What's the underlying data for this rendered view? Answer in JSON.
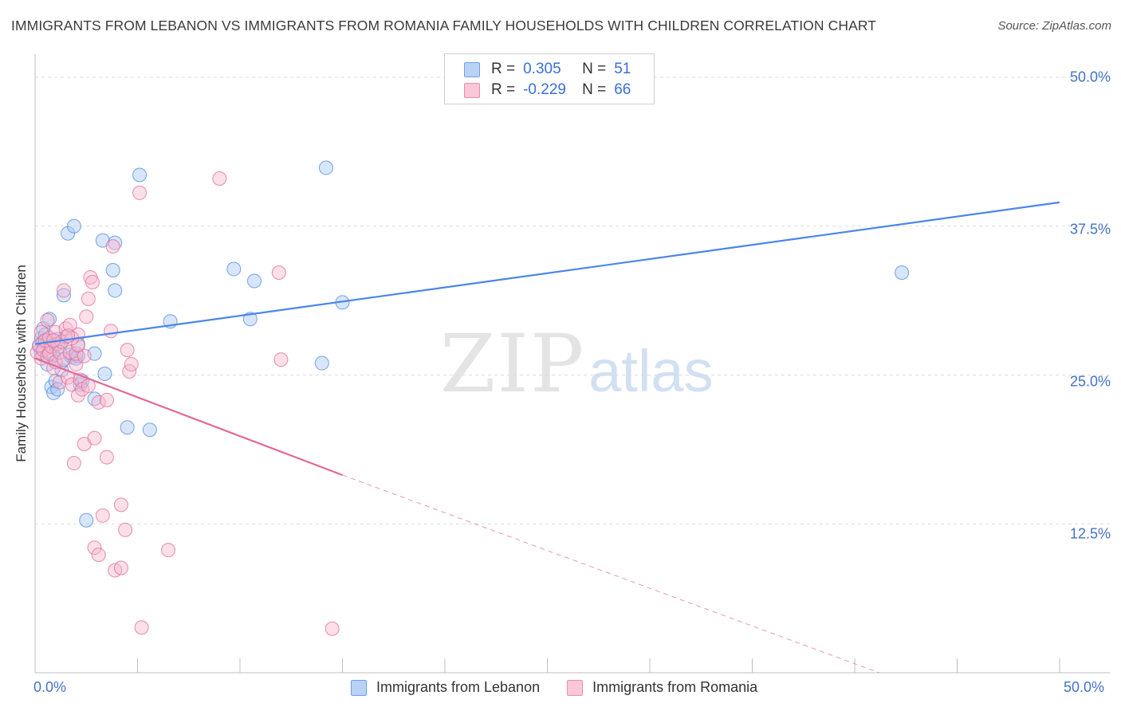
{
  "header": {
    "title": "IMMIGRANTS FROM LEBANON VS IMMIGRANTS FROM ROMANIA FAMILY HOUSEHOLDS WITH CHILDREN CORRELATION CHART",
    "source": "Source: ZipAtlas.com"
  },
  "watermark": {
    "zip": "ZIP",
    "atlas": "atlas"
  },
  "legend": {
    "lebanon": {
      "r_label": "R =",
      "r_value": "0.305",
      "n_label": "N =",
      "n_value": "51"
    },
    "romania": {
      "r_label": "R =",
      "r_value": "-0.229",
      "n_label": "N =",
      "n_value": "66"
    }
  },
  "chart_data": {
    "type": "scatter",
    "title": "IMMIGRANTS FROM LEBANON VS IMMIGRANTS FROM ROMANIA FAMILY HOUSEHOLDS WITH CHILDREN CORRELATION CHART",
    "xlabel": "",
    "ylabel": "Family Households with Children",
    "xlim": [
      0,
      50
    ],
    "ylim": [
      0,
      50
    ],
    "x_tick_labels": [
      "0.0%",
      "50.0%"
    ],
    "y_tick_labels": [
      {
        "value": 50,
        "label": "50.0%"
      },
      {
        "value": 37.5,
        "label": "37.5%"
      },
      {
        "value": 25,
        "label": "25.0%"
      },
      {
        "value": 12.5,
        "label": "12.5%"
      }
    ],
    "legend_position": "top-center",
    "colors": {
      "lebanon": "#4a86e8",
      "lebanon_fill": "#a9c8f2",
      "romania": "#e26a96",
      "romania_fill": "#f7b8cf"
    },
    "series": [
      {
        "name": "Immigrants from Lebanon",
        "r": 0.305,
        "n": 51,
        "trend": {
          "x": [
            0,
            50
          ],
          "y": [
            27.6,
            39.5
          ],
          "dashed_from": null
        },
        "points": [
          [
            0.2,
            27.4
          ],
          [
            0.3,
            28.1
          ],
          [
            0.3,
            26.9
          ],
          [
            0.4,
            27.8
          ],
          [
            0.4,
            28.9
          ],
          [
            0.5,
            27.2
          ],
          [
            0.5,
            28.4
          ],
          [
            0.6,
            27.9
          ],
          [
            0.7,
            27.0
          ],
          [
            0.7,
            29.7
          ],
          [
            0.8,
            24.0
          ],
          [
            0.9,
            23.5
          ],
          [
            1.0,
            24.5
          ],
          [
            1.0,
            27.6
          ],
          [
            1.1,
            23.8
          ],
          [
            1.1,
            28.0
          ],
          [
            1.2,
            27.4
          ],
          [
            1.3,
            25.4
          ],
          [
            1.4,
            31.7
          ],
          [
            1.5,
            28.2
          ],
          [
            1.6,
            36.9
          ],
          [
            1.7,
            26.7
          ],
          [
            1.8,
            26.5
          ],
          [
            1.9,
            37.5
          ],
          [
            2.0,
            26.4
          ],
          [
            2.1,
            26.6
          ],
          [
            2.1,
            27.6
          ],
          [
            2.2,
            24.2
          ],
          [
            2.3,
            24.5
          ],
          [
            2.5,
            12.8
          ],
          [
            2.9,
            23.0
          ],
          [
            2.9,
            26.8
          ],
          [
            3.3,
            36.3
          ],
          [
            3.4,
            25.1
          ],
          [
            3.8,
            33.8
          ],
          [
            3.9,
            32.1
          ],
          [
            3.9,
            36.1
          ],
          [
            4.5,
            20.6
          ],
          [
            5.1,
            41.8
          ],
          [
            5.6,
            20.4
          ],
          [
            6.6,
            29.5
          ],
          [
            9.7,
            33.9
          ],
          [
            10.5,
            29.7
          ],
          [
            10.7,
            32.9
          ],
          [
            14.0,
            26.0
          ],
          [
            14.2,
            42.4
          ],
          [
            15.0,
            31.1
          ],
          [
            42.3,
            33.6
          ],
          [
            0.6,
            25.9
          ],
          [
            1.3,
            26.1
          ],
          [
            0.9,
            26.6
          ]
        ]
      },
      {
        "name": "Immigrants from Romania",
        "r": -0.229,
        "n": 66,
        "trend": {
          "x": [
            0,
            15,
            41.2
          ],
          "y": [
            26.4,
            16.6,
            0
          ],
          "dashed_from": 15
        },
        "points": [
          [
            0.1,
            26.9
          ],
          [
            0.2,
            27.5
          ],
          [
            0.3,
            26.4
          ],
          [
            0.3,
            28.6
          ],
          [
            0.4,
            27.1
          ],
          [
            0.5,
            27.9
          ],
          [
            0.6,
            26.6
          ],
          [
            0.6,
            29.6
          ],
          [
            0.7,
            28.1
          ],
          [
            0.7,
            26.8
          ],
          [
            0.8,
            27.4
          ],
          [
            0.9,
            25.6
          ],
          [
            1.0,
            28.6
          ],
          [
            1.0,
            26.1
          ],
          [
            1.1,
            27.6
          ],
          [
            1.2,
            24.4
          ],
          [
            1.2,
            26.9
          ],
          [
            1.3,
            27.8
          ],
          [
            1.4,
            32.1
          ],
          [
            1.4,
            26.3
          ],
          [
            1.5,
            28.9
          ],
          [
            1.6,
            24.8
          ],
          [
            1.7,
            29.2
          ],
          [
            1.7,
            26.9
          ],
          [
            1.8,
            24.2
          ],
          [
            1.9,
            17.6
          ],
          [
            2.0,
            25.9
          ],
          [
            2.0,
            26.8
          ],
          [
            2.1,
            23.3
          ],
          [
            2.1,
            28.4
          ],
          [
            2.2,
            24.6
          ],
          [
            2.3,
            23.8
          ],
          [
            2.4,
            19.2
          ],
          [
            2.4,
            26.6
          ],
          [
            2.5,
            29.9
          ],
          [
            2.6,
            31.4
          ],
          [
            2.6,
            24.1
          ],
          [
            2.7,
            33.2
          ],
          [
            2.8,
            32.8
          ],
          [
            2.9,
            19.7
          ],
          [
            2.9,
            10.5
          ],
          [
            3.1,
            9.9
          ],
          [
            3.1,
            22.7
          ],
          [
            3.3,
            13.2
          ],
          [
            3.5,
            18.1
          ],
          [
            3.5,
            22.9
          ],
          [
            3.7,
            28.7
          ],
          [
            3.8,
            35.8
          ],
          [
            3.9,
            8.6
          ],
          [
            4.2,
            8.8
          ],
          [
            4.2,
            14.1
          ],
          [
            4.4,
            12.0
          ],
          [
            4.5,
            27.1
          ],
          [
            4.6,
            25.3
          ],
          [
            4.7,
            25.9
          ],
          [
            5.1,
            40.3
          ],
          [
            5.2,
            3.8
          ],
          [
            6.5,
            10.3
          ],
          [
            9.0,
            41.5
          ],
          [
            11.9,
            33.6
          ],
          [
            12.0,
            26.3
          ],
          [
            14.5,
            3.7
          ],
          [
            2.1,
            27.5
          ],
          [
            1.8,
            28.1
          ],
          [
            0.9,
            27.9
          ],
          [
            1.6,
            28.3
          ]
        ]
      }
    ]
  },
  "bottom_legend": {
    "lebanon": "Immigrants from Lebanon",
    "romania": "Immigrants from Romania"
  }
}
